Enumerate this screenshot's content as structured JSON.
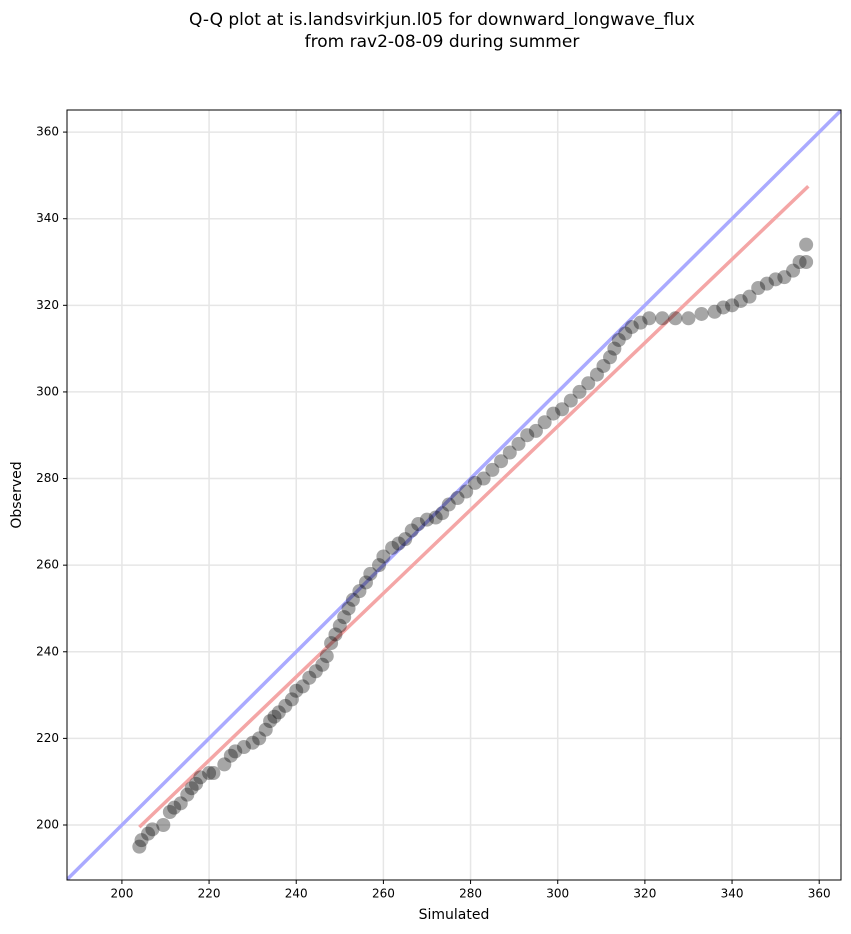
{
  "chart_data": {
    "type": "scatter",
    "title": [
      "Q-Q plot at is.landsvirkjun.l05 for downward_longwave_flux",
      "from rav2-08-09 during summer"
    ],
    "x_label": "Simulated",
    "y_label": "Observed",
    "xlim": [
      187.4,
      365.0
    ],
    "ylim": [
      187.3,
      365.1
    ],
    "xticks": [
      200,
      220,
      240,
      260,
      280,
      300,
      320,
      340,
      360
    ],
    "yticks": [
      200,
      220,
      240,
      260,
      280,
      300,
      320,
      340,
      360
    ],
    "grid": true,
    "series": [
      {
        "color": "#000000",
        "x": [
          204,
          204.5,
          206,
          207,
          209.5,
          211,
          212,
          213.5,
          215,
          216,
          217,
          218,
          220,
          221,
          223.5,
          225,
          226,
          228,
          230,
          231.5,
          233,
          234,
          235,
          236,
          237.5,
          239,
          240,
          241.5,
          243,
          244.5,
          246,
          247,
          248,
          249,
          250,
          251,
          252,
          253,
          254.5,
          256,
          257,
          259,
          260,
          262,
          263.5,
          265,
          266.5,
          268,
          270,
          272,
          273.5,
          275,
          277,
          279,
          281,
          283,
          285,
          287,
          289,
          291,
          293,
          295,
          297,
          299,
          301,
          303,
          305,
          307,
          309,
          310.5,
          312,
          313,
          314,
          315.5,
          317,
          319,
          321,
          324,
          327,
          330,
          333,
          336,
          338,
          340,
          342,
          344,
          346,
          348,
          350,
          352,
          354,
          355.5,
          357,
          357
        ],
        "y": [
          195,
          196.5,
          198,
          199,
          200,
          203,
          204,
          205,
          207,
          208.5,
          209.5,
          211,
          212,
          212,
          214,
          216,
          217,
          218,
          219,
          220,
          222,
          224,
          225,
          226,
          227.5,
          229,
          231,
          232,
          234,
          235.5,
          237,
          239,
          242,
          244,
          246,
          248,
          250,
          252,
          254,
          256,
          258,
          260,
          262,
          264,
          265,
          266,
          268,
          269.5,
          270.5,
          271,
          272,
          274,
          275.5,
          277,
          279,
          280,
          282,
          284,
          286,
          288,
          290,
          291,
          293,
          295,
          296,
          298,
          300,
          302,
          304,
          306,
          308,
          310,
          312,
          313.5,
          315,
          316,
          317,
          317,
          317,
          317,
          318,
          318.5,
          319.5,
          320,
          321,
          322,
          324,
          325,
          326,
          326.5,
          328,
          330,
          330,
          334
        ]
      }
    ],
    "reference_line": {
      "x": [
        187.4,
        365.0
      ],
      "y": [
        187.4,
        365.0
      ],
      "color": "#aaaaff"
    },
    "fit_line": {
      "x": [
        204,
        357.5
      ],
      "y": [
        199.5,
        347.5
      ],
      "color": "#f4a6a6"
    }
  }
}
